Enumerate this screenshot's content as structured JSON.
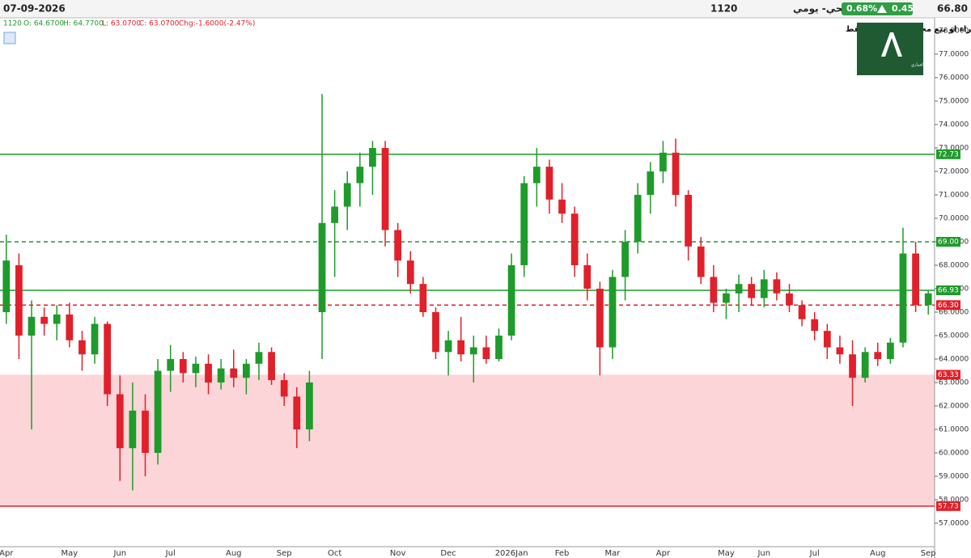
{
  "header": {
    "date": "07-09-2026",
    "symbol": "1120",
    "name": "الراجحي- يومي",
    "change_pct": "0.68%",
    "change": "0.45",
    "price": "66.80"
  },
  "info": {
    "symbol": "1120",
    "open": "O: 64.6700",
    "high": "H: 64.7700",
    "low": "L: 63.0700",
    "close": "C: 63.0700",
    "chg": "Chg:-1.6000(-2.47%)"
  },
  "disclaimer": "لاتعد توصية شراء او بيع مجرد نظرة فنية فقط",
  "logo": {
    "caption": "علي العماري"
  },
  "chart_data": {
    "type": "candlestick",
    "categories": [
      "Apr",
      null,
      null,
      null,
      null,
      "May",
      null,
      null,
      null,
      "Jun",
      null,
      null,
      null,
      "Jul",
      null,
      null,
      null,
      null,
      "Aug",
      null,
      null,
      null,
      "Sep",
      null,
      null,
      null,
      "Oct",
      null,
      null,
      null,
      null,
      "Nov",
      null,
      null,
      null,
      "Dec",
      null,
      null,
      null,
      null,
      "2026Jan",
      null,
      null,
      null,
      "Feb",
      null,
      null,
      null,
      "Mar",
      null,
      null,
      null,
      "Apr",
      null,
      null,
      null,
      null,
      "May",
      null,
      null,
      "Jun",
      null,
      null,
      null,
      "Jul",
      null,
      null,
      null,
      null,
      "Aug",
      null,
      null,
      null,
      "Sep"
    ],
    "open": [
      66.0,
      68.0,
      65.0,
      65.8,
      65.5,
      65.9,
      64.8,
      64.2,
      65.5,
      62.5,
      60.2,
      61.8,
      60.0,
      63.5,
      64.0,
      63.4,
      63.8,
      63.0,
      63.6,
      63.2,
      63.8,
      64.3,
      63.1,
      62.4,
      61.0,
      66.0,
      69.8,
      70.5,
      71.5,
      72.2,
      73.0,
      69.5,
      68.2,
      67.2,
      66.0,
      64.3,
      64.8,
      64.2,
      64.5,
      64.0,
      65.0,
      68.0,
      71.5,
      72.2,
      70.8,
      70.2,
      68.0,
      67.0,
      64.5,
      67.5,
      69.0,
      71.0,
      72.0,
      72.8,
      71.0,
      68.8,
      67.5,
      66.4,
      66.8,
      67.2,
      66.6,
      67.4,
      66.8,
      66.3,
      65.7,
      65.2,
      64.5,
      64.2,
      63.2,
      64.3,
      64.0,
      64.7,
      68.5,
      66.3
    ],
    "high": [
      69.3,
      68.5,
      66.5,
      66.2,
      66.3,
      66.4,
      65.2,
      65.8,
      65.6,
      63.3,
      63.0,
      62.5,
      64.0,
      64.6,
      64.3,
      64.1,
      64.2,
      64.0,
      64.4,
      64.0,
      64.7,
      64.5,
      63.4,
      62.8,
      63.5,
      75.3,
      71.2,
      72.0,
      72.8,
      73.3,
      73.3,
      69.8,
      68.6,
      67.5,
      66.2,
      65.2,
      65.8,
      65.0,
      65.0,
      65.3,
      68.5,
      71.8,
      73.0,
      72.5,
      71.5,
      70.5,
      68.5,
      67.3,
      67.8,
      69.5,
      71.5,
      72.4,
      73.3,
      73.4,
      71.2,
      69.2,
      68.0,
      67.0,
      67.6,
      67.5,
      67.8,
      67.7,
      67.2,
      66.5,
      66.0,
      65.5,
      65.0,
      64.8,
      64.5,
      64.7,
      64.9,
      69.6,
      69.0,
      66.9
    ],
    "low": [
      65.5,
      64.0,
      61.0,
      65.0,
      64.8,
      64.5,
      63.5,
      63.8,
      62.0,
      58.8,
      58.4,
      59.0,
      59.5,
      62.6,
      63.0,
      62.8,
      62.5,
      62.7,
      62.8,
      62.5,
      63.1,
      62.9,
      62.0,
      60.2,
      60.5,
      64.0,
      67.5,
      69.5,
      70.5,
      71.0,
      68.8,
      67.5,
      66.8,
      65.8,
      64.0,
      63.3,
      63.9,
      63.0,
      63.8,
      63.9,
      64.8,
      67.5,
      70.5,
      70.2,
      69.8,
      67.5,
      66.5,
      63.3,
      64.0,
      66.5,
      68.5,
      70.2,
      71.5,
      70.5,
      68.2,
      67.2,
      66.0,
      65.7,
      66.0,
      66.3,
      66.2,
      66.5,
      66.0,
      65.4,
      64.8,
      64.0,
      63.8,
      62.0,
      63.0,
      63.7,
      63.8,
      64.5,
      66.0,
      65.9
    ],
    "close": [
      68.2,
      65.0,
      65.8,
      65.5,
      65.9,
      64.8,
      64.2,
      65.5,
      62.5,
      60.2,
      61.8,
      60.0,
      63.5,
      64.0,
      63.4,
      63.8,
      63.0,
      63.6,
      63.2,
      63.8,
      64.3,
      63.1,
      62.4,
      61.0,
      63.0,
      69.8,
      70.5,
      71.5,
      72.2,
      73.0,
      69.5,
      68.2,
      67.2,
      66.0,
      64.3,
      64.8,
      64.2,
      64.5,
      64.0,
      65.0,
      68.0,
      71.5,
      72.2,
      70.8,
      70.2,
      68.0,
      67.0,
      64.5,
      67.5,
      69.0,
      71.0,
      72.0,
      72.8,
      71.0,
      68.8,
      67.5,
      66.4,
      66.8,
      67.2,
      66.6,
      67.4,
      66.8,
      66.3,
      65.7,
      65.2,
      64.5,
      64.2,
      63.2,
      64.3,
      64.0,
      64.7,
      68.5,
      66.3,
      66.8
    ],
    "up_color": "#1e9b2a",
    "down_color": "#e0202a",
    "ylim": [
      56,
      78.55
    ],
    "yticks": [
      {
        "value": 57,
        "label": "57.0000"
      },
      {
        "value": 58,
        "label": "58.0000"
      },
      {
        "value": 59,
        "label": "59.0000"
      },
      {
        "value": 60,
        "label": "60.0000"
      },
      {
        "value": 61,
        "label": "61.0000"
      },
      {
        "value": 62,
        "label": "62.0000"
      },
      {
        "value": 63,
        "label": "63.0000"
      },
      {
        "value": 64,
        "label": "64.0000"
      },
      {
        "value": 65,
        "label": "65.0000"
      },
      {
        "value": 66,
        "label": "66.0000"
      },
      {
        "value": 67,
        "label": "67.0000"
      },
      {
        "value": 68,
        "label": "68.0000"
      },
      {
        "value": 69,
        "label": "69.0000"
      },
      {
        "value": 70,
        "label": "70.0000"
      },
      {
        "value": 71,
        "label": "71.0000"
      },
      {
        "value": 72,
        "label": "72.0000"
      },
      {
        "value": 73,
        "label": "73.0000"
      },
      {
        "value": 74,
        "label": "74.0000"
      },
      {
        "value": 75,
        "label": "75.0000"
      },
      {
        "value": 76,
        "label": "76.0000"
      },
      {
        "value": 77,
        "label": "77.0000"
      },
      {
        "value": 78,
        "label": "78.0000"
      }
    ],
    "levels": [
      {
        "value": 72.73,
        "color": "#1e9b2a",
        "style": "solid"
      },
      {
        "value": 69,
        "label": "69.00",
        "color": "#1e9b2a",
        "style": "dashed"
      },
      {
        "value": 66.93,
        "color": "#1e9b2a",
        "style": "solid"
      },
      {
        "value": 66.3,
        "label": "66.30",
        "color": "#e0202a",
        "style": "dashed"
      },
      {
        "value": 63.33,
        "color": "#e0202a",
        "style": "none"
      },
      {
        "value": 57.73,
        "color": "#e0202a",
        "style": "solid"
      }
    ],
    "zone": {
      "from": 63.33,
      "to": 57.73,
      "color": "#fcd5d8"
    }
  }
}
